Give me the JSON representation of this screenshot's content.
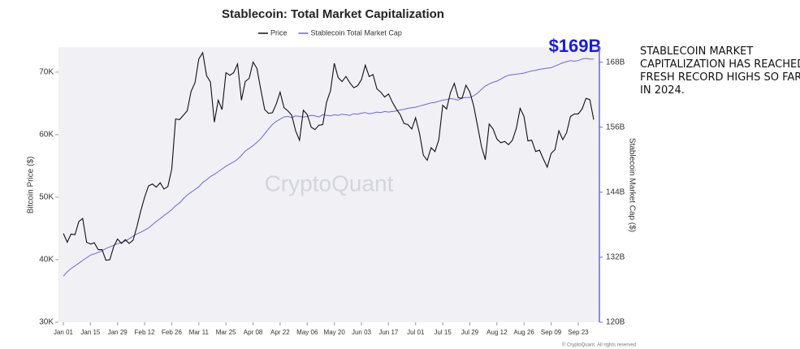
{
  "chart_data": {
    "type": "line",
    "title": "Stablecoin: Total Market Capitalization",
    "ylabel": "Bitcoin Price ($)",
    "y2label": "Stablecoin Market Cap ($)",
    "watermark": "CryptoQuant",
    "footer": "© CryptoQuant. All rights reserved",
    "annotation": "$169B",
    "note": [
      "STABLECOIN MARKET",
      "CAPITALIZATION HAS REACHED",
      "FRESH RECORD HIGHS SO FAR",
      "IN 2024."
    ],
    "x": [
      "Jan 01",
      "Jan 03",
      "Jan 05",
      "Jan 07",
      "Jan 09",
      "Jan 11",
      "Jan 13",
      "Jan 15",
      "Jan 17",
      "Jan 19",
      "Jan 21",
      "Jan 23",
      "Jan 25",
      "Jan 27",
      "Jan 29",
      "Jan 31",
      "Feb 02",
      "Feb 04",
      "Feb 06",
      "Feb 08",
      "Feb 10",
      "Feb 12",
      "Feb 14",
      "Feb 16",
      "Feb 18",
      "Feb 20",
      "Feb 22",
      "Feb 24",
      "Feb 26",
      "Feb 28",
      "Mar 01",
      "Mar 03",
      "Mar 05",
      "Mar 07",
      "Mar 09",
      "Mar 11",
      "Mar 13",
      "Mar 15",
      "Mar 17",
      "Mar 19",
      "Mar 21",
      "Mar 23",
      "Mar 25",
      "Mar 27",
      "Mar 29",
      "Mar 31",
      "Apr 02",
      "Apr 04",
      "Apr 06",
      "Apr 08",
      "Apr 10",
      "Apr 12",
      "Apr 14",
      "Apr 16",
      "Apr 18",
      "Apr 20",
      "Apr 22",
      "Apr 24",
      "Apr 26",
      "Apr 28",
      "Apr 30",
      "May 02",
      "May 04",
      "May 06",
      "May 08",
      "May 10",
      "May 12",
      "May 14",
      "May 16",
      "May 18",
      "May 20",
      "May 22",
      "May 24",
      "May 26",
      "May 28",
      "May 30",
      "Jun 01",
      "Jun 03",
      "Jun 05",
      "Jun 07",
      "Jun 09",
      "Jun 11",
      "Jun 13",
      "Jun 15",
      "Jun 17",
      "Jun 19",
      "Jun 21",
      "Jun 23",
      "Jun 25",
      "Jun 27",
      "Jun 29",
      "Jul 01",
      "Jul 03",
      "Jul 05",
      "Jul 07",
      "Jul 09",
      "Jul 11",
      "Jul 13",
      "Jul 15",
      "Jul 17",
      "Jul 19",
      "Jul 21",
      "Jul 23",
      "Jul 25",
      "Jul 27",
      "Jul 29",
      "Jul 31",
      "Aug 02",
      "Aug 04",
      "Aug 06",
      "Aug 08",
      "Aug 10",
      "Aug 12",
      "Aug 14",
      "Aug 16",
      "Aug 18",
      "Aug 20",
      "Aug 22",
      "Aug 24",
      "Aug 26",
      "Aug 28",
      "Aug 30",
      "Sep 01",
      "Sep 03",
      "Sep 05",
      "Sep 07",
      "Sep 09",
      "Sep 11",
      "Sep 13",
      "Sep 15",
      "Sep 17",
      "Sep 19",
      "Sep 21",
      "Sep 23",
      "Sep 25",
      "Sep 27",
      "Sep 29",
      "Oct 01"
    ],
    "xticks": [
      "Jan 01",
      "Jan 15",
      "Jan 29",
      "Feb 12",
      "Feb 26",
      "Mar 11",
      "Mar 25",
      "Apr 08",
      "Apr 22",
      "May 06",
      "May 20",
      "Jun 03",
      "Jun 17",
      "Jul 01",
      "Jul 15",
      "Jul 29",
      "Aug 12",
      "Aug 26",
      "Sep 09",
      "Sep 23"
    ],
    "ylim": [
      30000,
      74000
    ],
    "yticks": [
      {
        "value": 30000,
        "label": "30K"
      },
      {
        "value": 40000,
        "label": "40K"
      },
      {
        "value": 50000,
        "label": "50K"
      },
      {
        "value": 60000,
        "label": "60K"
      },
      {
        "value": 70000,
        "label": "70K"
      }
    ],
    "y2lim": [
      120,
      170.8
    ],
    "y2ticks": [
      {
        "value": 120,
        "label": "120B"
      },
      {
        "value": 132,
        "label": "132B"
      },
      {
        "value": 144,
        "label": "144B"
      },
      {
        "value": 156,
        "label": "156B"
      },
      {
        "value": 168,
        "label": "168B"
      }
    ],
    "series": [
      {
        "name": "Price",
        "color": "#111111",
        "values": [
          44200,
          42800,
          44100,
          44000,
          46100,
          46600,
          42800,
          42500,
          42700,
          41600,
          41600,
          39900,
          40000,
          42100,
          43300,
          42600,
          43200,
          42600,
          43100,
          45300,
          47800,
          50000,
          51800,
          52100,
          51600,
          52300,
          51300,
          51700,
          54500,
          62500,
          62400,
          63100,
          63800,
          66900,
          68300,
          72100,
          73100,
          69400,
          68400,
          62000,
          65500,
          64000,
          69900,
          69500,
          69900,
          71300,
          65500,
          68500,
          69000,
          71600,
          70600,
          67200,
          64000,
          63400,
          63500,
          64900,
          66800,
          64300,
          63800,
          63100,
          60600,
          59100,
          63900,
          63200,
          61200,
          60800,
          61500,
          61600,
          65200,
          67000,
          71400,
          69100,
          68500,
          69300,
          68300,
          67500,
          67800,
          68800,
          71100,
          69300,
          69600,
          67300,
          66800,
          66000,
          66500,
          65200,
          64100,
          63200,
          61800,
          61600,
          60900,
          62700,
          60200,
          56700,
          55900,
          57900,
          57300,
          59200,
          64700,
          64100,
          66700,
          68200,
          65900,
          65800,
          67900,
          66800,
          64600,
          61400,
          58100,
          56000,
          61700,
          60900,
          59300,
          58700,
          58900,
          58400,
          59100,
          61000,
          64200,
          62900,
          59000,
          59100,
          57300,
          57500,
          56100,
          54800,
          57000,
          57600,
          60600,
          59200,
          60300,
          62900,
          63300,
          63300,
          64100,
          65800,
          65600,
          62400
        ]
      },
      {
        "name": "Stablecoin Total Market Cap",
        "color": "#6f63e0",
        "axis": "y2",
        "values": [
          128.5,
          129.3,
          129.9,
          130.4,
          130.9,
          131.4,
          131.9,
          132.4,
          132.6,
          132.9,
          133.2,
          133.6,
          133.9,
          134.2,
          134.5,
          134.7,
          135.0,
          135.4,
          135.9,
          136.3,
          136.6,
          137.0,
          137.4,
          138.0,
          138.6,
          139.1,
          139.7,
          140.2,
          140.8,
          141.5,
          142.0,
          142.8,
          143.5,
          144.0,
          144.5,
          145.0,
          145.8,
          146.3,
          146.9,
          147.3,
          147.8,
          148.3,
          148.8,
          149.2,
          149.6,
          150.1,
          150.8,
          151.6,
          152.1,
          152.6,
          153.2,
          153.9,
          154.8,
          155.7,
          156.5,
          157.1,
          157.5,
          157.9,
          158.0,
          157.8,
          158.1,
          158.0,
          157.9,
          158.0,
          158.2,
          158.1,
          157.9,
          158.3,
          158.2,
          158.1,
          158.3,
          158.2,
          158.4,
          158.3,
          158.2,
          158.5,
          158.4,
          158.6,
          158.7,
          158.5,
          158.6,
          158.8,
          158.7,
          158.9,
          158.8,
          158.9,
          159.0,
          159.2,
          159.3,
          159.5,
          159.6,
          159.7,
          159.9,
          160.1,
          160.3,
          160.5,
          160.6,
          160.8,
          161.0,
          161.1,
          161.3,
          161.2,
          161.0,
          161.4,
          161.5,
          161.5,
          161.8,
          162.3,
          163.0,
          163.6,
          164.0,
          164.3,
          164.5,
          164.9,
          165.3,
          165.6,
          165.7,
          165.8,
          165.9,
          166.0,
          166.2,
          166.4,
          166.5,
          166.7,
          166.8,
          166.9,
          167.0,
          167.3,
          167.6,
          167.9,
          168.1,
          168.3,
          168.2,
          168.3,
          168.6,
          168.7,
          168.6,
          168.6
        ]
      }
    ]
  }
}
